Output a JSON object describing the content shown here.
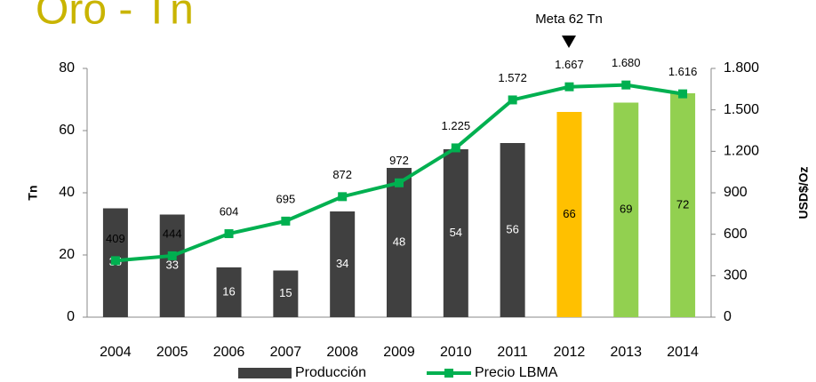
{
  "chart_data": {
    "type": "bar",
    "title": "Oro - Tn",
    "annotation": "Meta 62 Tn",
    "categories": [
      "2004",
      "2005",
      "2006",
      "2007",
      "2008",
      "2009",
      "2010",
      "2011",
      "2012",
      "2013",
      "2014"
    ],
    "series": [
      {
        "name": "Producción",
        "color": "#404040",
        "colors": [
          "#404040",
          "#404040",
          "#404040",
          "#404040",
          "#404040",
          "#404040",
          "#404040",
          "#404040",
          "#FFC000",
          "#92D050",
          "#92D050"
        ],
        "values": [
          35,
          33,
          16,
          15,
          34,
          48,
          54,
          56,
          66,
          69,
          72
        ]
      },
      {
        "name": "Precio LBMA",
        "type": "line",
        "axis": "y2",
        "color": "#00B050",
        "values": [
          409,
          444,
          604,
          695,
          872,
          972,
          1225,
          1572,
          1667,
          1680,
          1616
        ],
        "value_labels": [
          "409",
          "444",
          "604",
          "695",
          "872",
          "972",
          "1.225",
          "1.572",
          "1.667",
          "1.680",
          "1.616"
        ]
      }
    ],
    "y_label": "Tn",
    "y2_label": "USD$/Oz",
    "ylim": [
      0,
      80
    ],
    "yticks": [
      0,
      20,
      40,
      60,
      80
    ],
    "y2lim": [
      0,
      1800
    ],
    "y2ticks": [
      0,
      300,
      600,
      900,
      {
        "value": 1200,
        "label": "1.200"
      },
      {
        "value": 1500,
        "label": "1.500"
      },
      {
        "value": 1800,
        "label": "1.800"
      }
    ],
    "legend": "bottom"
  }
}
